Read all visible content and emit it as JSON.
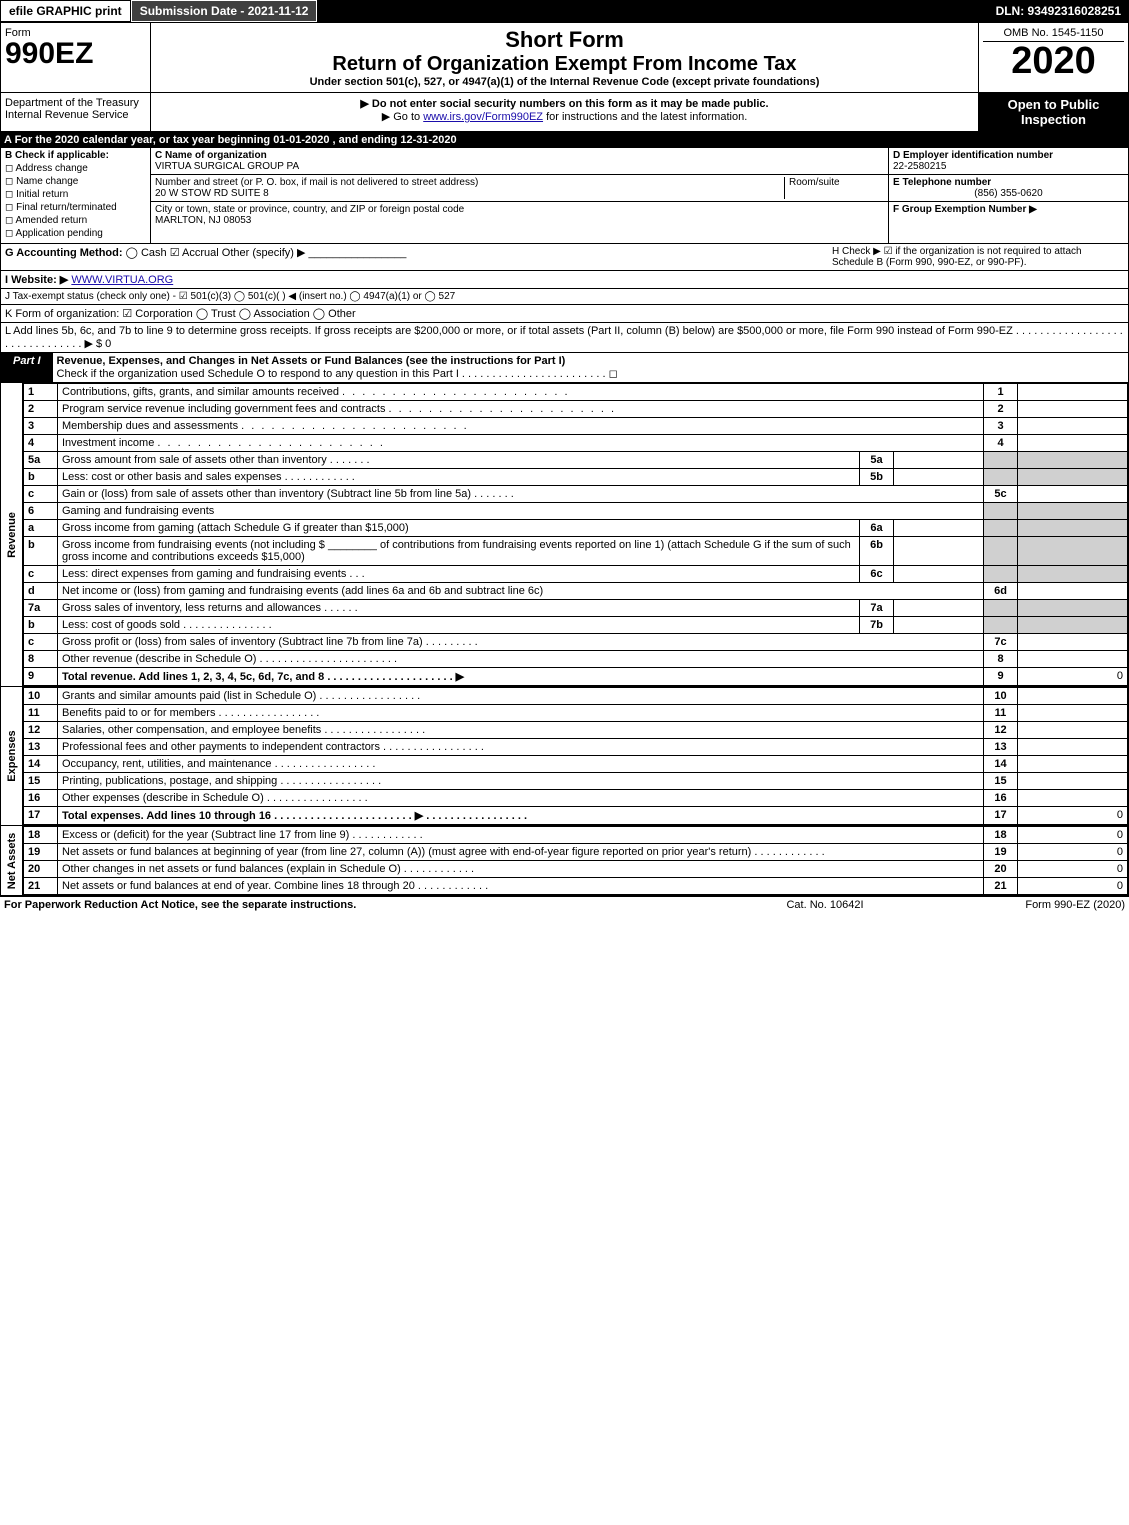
{
  "topbar": {
    "efile": "efile GRAPHIC print",
    "submission_date_label": "Submission Date - 2021-11-12",
    "dln": "DLN: 93492316028251"
  },
  "header": {
    "form_label": "Form",
    "form_number": "990EZ",
    "short_form": "Short Form",
    "return_title": "Return of Organization Exempt From Income Tax",
    "under_text": "Under section 501(c), 527, or 4947(a)(1) of the Internal Revenue Code (except private foundations)",
    "omb": "OMB No. 1545-1150",
    "year": "2020",
    "dept": "Department of the Treasury Internal Revenue Service",
    "notice1": "▶ Do not enter social security numbers on this form as it may be made public.",
    "notice2_pre": "▶ Go to ",
    "notice2_link": "www.irs.gov/Form990EZ",
    "notice2_post": " for instructions and the latest information.",
    "open_public": "Open to Public Inspection"
  },
  "line_a": "A For the 2020 calendar year, or tax year beginning 01-01-2020 , and ending 12-31-2020",
  "section_b": {
    "title": "B Check if applicable:",
    "items": [
      "Address change",
      "Name change",
      "Initial return",
      "Final return/terminated",
      "Amended return",
      "Application pending"
    ]
  },
  "section_c": {
    "name_label": "C Name of organization",
    "name": "VIRTUA SURGICAL GROUP PA",
    "street_label": "Number and street (or P. O. box, if mail is not delivered to street address)",
    "room_label": "Room/suite",
    "street": "20 W STOW RD SUITE 8",
    "city_label": "City or town, state or province, country, and ZIP or foreign postal code",
    "city": "MARLTON, NJ  08053"
  },
  "section_d": {
    "ein_label": "D Employer identification number",
    "ein": "22-2580215",
    "phone_label": "E Telephone number",
    "phone": "(856) 355-0620",
    "group_label": "F Group Exemption Number ▶"
  },
  "section_g": {
    "label": "G Accounting Method:",
    "cash": "Cash",
    "accrual": "Accrual",
    "other": "Other (specify) ▶",
    "h_text": "H Check ▶ ☑ if the organization is not required to attach Schedule B (Form 990, 990-EZ, or 990-PF)."
  },
  "section_i": {
    "label": "I Website: ▶",
    "url": "WWW.VIRTUA.ORG"
  },
  "section_j": "J Tax-exempt status (check only one) - ☑ 501(c)(3) ◯ 501(c)(  ) ◀ (insert no.) ◯ 4947(a)(1) or ◯ 527",
  "section_k": "K Form of organization: ☑ Corporation  ◯ Trust  ◯ Association  ◯ Other",
  "section_l": "L Add lines 5b, 6c, and 7b to line 9 to determine gross receipts. If gross receipts are $200,000 or more, or if total assets (Part II, column (B) below) are $500,000 or more, file Form 990 instead of Form 990-EZ . . . . . . . . . . . . . . . . . . . . . . . . . . . . . . . ▶ $ 0",
  "part1": {
    "label": "Part I",
    "title": "Revenue, Expenses, and Changes in Net Assets or Fund Balances (see the instructions for Part I)",
    "check": "Check if the organization used Schedule O to respond to any question in this Part I . . . . . . . . . . . . . . . . . . . . . . . . ◻"
  },
  "side_labels": {
    "revenue": "Revenue",
    "expenses": "Expenses",
    "netassets": "Net Assets"
  },
  "rev_lines": [
    {
      "n": "1",
      "t": "Contributions, gifts, grants, and similar amounts received",
      "r": "1",
      "v": ""
    },
    {
      "n": "2",
      "t": "Program service revenue including government fees and contracts",
      "r": "2",
      "v": ""
    },
    {
      "n": "3",
      "t": "Membership dues and assessments",
      "r": "3",
      "v": ""
    },
    {
      "n": "4",
      "t": "Investment income",
      "r": "4",
      "v": ""
    }
  ],
  "line5a": {
    "n": "5a",
    "t": "Gross amount from sale of assets other than inventory",
    "m": "5a"
  },
  "line5b": {
    "n": "b",
    "t": "Less: cost or other basis and sales expenses",
    "m": "5b"
  },
  "line5c": {
    "n": "c",
    "t": "Gain or (loss) from sale of assets other than inventory (Subtract line 5b from line 5a)",
    "r": "5c"
  },
  "line6": {
    "n": "6",
    "t": "Gaming and fundraising events"
  },
  "line6a": {
    "n": "a",
    "t": "Gross income from gaming (attach Schedule G if greater than $15,000)",
    "m": "6a"
  },
  "line6b": {
    "n": "b",
    "t1": "Gross income from fundraising events (not including $",
    "t2": "of contributions from fundraising events reported on line 1) (attach Schedule G if the sum of such gross income and contributions exceeds $15,000)",
    "m": "6b"
  },
  "line6c": {
    "n": "c",
    "t": "Less: direct expenses from gaming and fundraising events",
    "m": "6c"
  },
  "line6d": {
    "n": "d",
    "t": "Net income or (loss) from gaming and fundraising events (add lines 6a and 6b and subtract line 6c)",
    "r": "6d"
  },
  "line7a": {
    "n": "7a",
    "t": "Gross sales of inventory, less returns and allowances",
    "m": "7a"
  },
  "line7b": {
    "n": "b",
    "t": "Less: cost of goods sold",
    "m": "7b"
  },
  "line7c": {
    "n": "c",
    "t": "Gross profit or (loss) from sales of inventory (Subtract line 7b from line 7a)",
    "r": "7c"
  },
  "line8": {
    "n": "8",
    "t": "Other revenue (describe in Schedule O)",
    "r": "8"
  },
  "line9": {
    "n": "9",
    "t": "Total revenue. Add lines 1, 2, 3, 4, 5c, 6d, 7c, and 8  . . . . . . . . . . . . . . . . . . . . . ▶",
    "r": "9",
    "v": "0"
  },
  "exp_lines": [
    {
      "n": "10",
      "t": "Grants and similar amounts paid (list in Schedule O)",
      "r": "10"
    },
    {
      "n": "11",
      "t": "Benefits paid to or for members",
      "r": "11"
    },
    {
      "n": "12",
      "t": "Salaries, other compensation, and employee benefits",
      "r": "12"
    },
    {
      "n": "13",
      "t": "Professional fees and other payments to independent contractors",
      "r": "13"
    },
    {
      "n": "14",
      "t": "Occupancy, rent, utilities, and maintenance",
      "r": "14"
    },
    {
      "n": "15",
      "t": "Printing, publications, postage, and shipping",
      "r": "15"
    },
    {
      "n": "16",
      "t": "Other expenses (describe in Schedule O)",
      "r": "16"
    },
    {
      "n": "17",
      "t": "Total expenses. Add lines 10 through 16  . . . . . . . . . . . . . . . . . . . . . . . ▶",
      "r": "17",
      "v": "0"
    }
  ],
  "net_lines": [
    {
      "n": "18",
      "t": "Excess or (deficit) for the year (Subtract line 17 from line 9)",
      "r": "18",
      "v": "0"
    },
    {
      "n": "19",
      "t": "Net assets or fund balances at beginning of year (from line 27, column (A)) (must agree with end-of-year figure reported on prior year's return)",
      "r": "19",
      "v": "0"
    },
    {
      "n": "20",
      "t": "Other changes in net assets or fund balances (explain in Schedule O)",
      "r": "20",
      "v": "0"
    },
    {
      "n": "21",
      "t": "Net assets or fund balances at end of year. Combine lines 18 through 20",
      "r": "21",
      "v": "0"
    }
  ],
  "footer": {
    "left": "For Paperwork Reduction Act Notice, see the separate instructions.",
    "mid": "Cat. No. 10642I",
    "right": "Form 990-EZ (2020)"
  },
  "colors": {
    "black": "#000000",
    "white": "#ffffff",
    "shade": "#d0d0d0",
    "link": "#1a0dab",
    "darkgray": "#404040"
  }
}
